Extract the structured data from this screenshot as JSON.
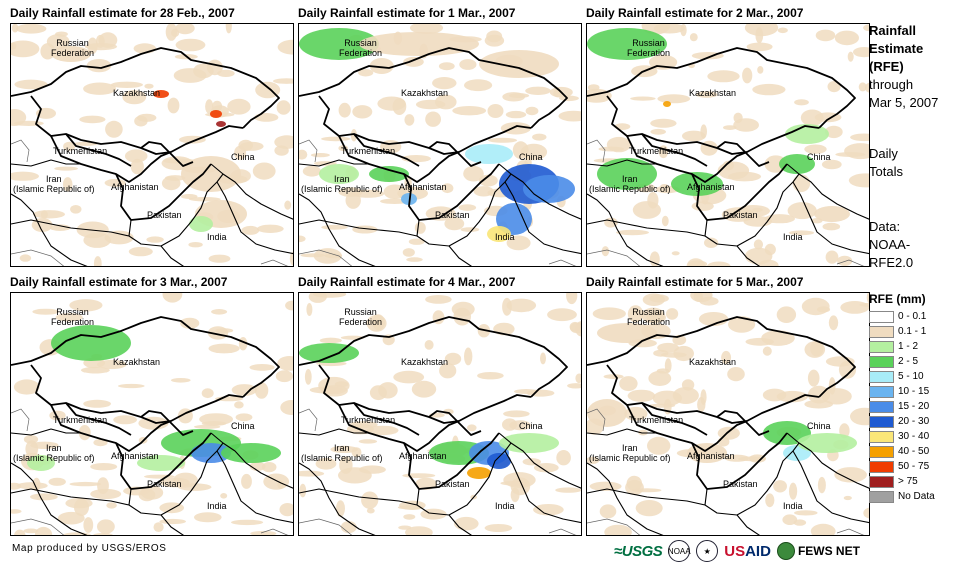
{
  "panels": [
    {
      "title": "Daily Rainfall estimate for 28 Feb., 2007"
    },
    {
      "title": "Daily Rainfall estimate for 1 Mar., 2007"
    },
    {
      "title": "Daily Rainfall estimate for 2 Mar., 2007"
    },
    {
      "title": "Daily Rainfall estimate for 3 Mar., 2007"
    },
    {
      "title": "Daily Rainfall estimate for 4 Mar., 2007"
    },
    {
      "title": "Daily Rainfall estimate for 5 Mar., 2007"
    }
  ],
  "map_labels": {
    "russia": "Russian\nFederation",
    "kazakhstan": "Kazakhstan",
    "turkmenistan": "Turkmenistan",
    "iran": "Iran\n(Islamic Republic of)",
    "afghanistan": "Afghanistan",
    "pakistan": "Pakistan",
    "china": "China",
    "india": "India"
  },
  "sidebar": {
    "title1": "Rainfall",
    "title2": "Estimate",
    "title3": "(RFE)",
    "through": "through",
    "date": "Mar 5, 2007",
    "totals1": "Daily",
    "totals2": "Totals",
    "data1": "Data:",
    "data2": "NOAA-",
    "data3": "RFE2.0"
  },
  "legend": {
    "title": "RFE (mm)",
    "items": [
      {
        "label": "0 - 0.1",
        "color": "#ffffff"
      },
      {
        "label": "0.1 - 1",
        "color": "#f0dcc0"
      },
      {
        "label": "1 - 2",
        "color": "#b4f0a0"
      },
      {
        "label": "2 - 5",
        "color": "#5ad25a"
      },
      {
        "label": "5 - 10",
        "color": "#a8ecf8"
      },
      {
        "label": "10 - 15",
        "color": "#6ab4f0"
      },
      {
        "label": "15 - 20",
        "color": "#4a8ce8"
      },
      {
        "label": "20 - 30",
        "color": "#1e5ad2"
      },
      {
        "label": "30 - 40",
        "color": "#fae678"
      },
      {
        "label": "40 - 50",
        "color": "#f5a000"
      },
      {
        "label": "50 - 75",
        "color": "#f03c00"
      },
      {
        "label": "> 75",
        "color": "#a01e1e"
      },
      {
        "label": "No Data",
        "color": "#a0a0a0"
      }
    ]
  },
  "credit": "Map produced by USGS/EROS",
  "logos": {
    "usgs": "≈USGS",
    "noaa": "NOAA",
    "usaid_a": "US",
    "usaid_b": "AID",
    "fews": "FEWS NET"
  }
}
